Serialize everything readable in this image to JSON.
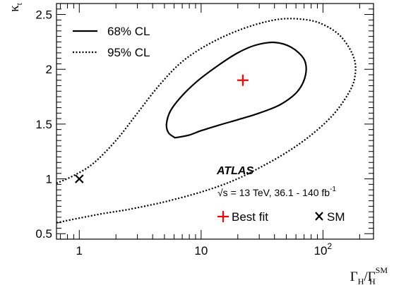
{
  "chart_data": {
    "type": "contour",
    "xlabel": {
      "base": "Γ",
      "sub": "H",
      "sep": "/",
      "base2": "Γ",
      "sub2": "H",
      "sup2": "SM"
    },
    "ylabel": {
      "base": "κ",
      "sub": "t"
    },
    "xscale": "log",
    "xlim": [
      0.65,
      260
    ],
    "ylim": [
      0.45,
      2.6
    ],
    "xticks": [
      {
        "value": 1,
        "label": "1"
      },
      {
        "value": 10,
        "label": "10"
      },
      {
        "value": 100,
        "label": "10",
        "sup": "2"
      }
    ],
    "yticks": [
      {
        "value": 0.5,
        "label": "0.5"
      },
      {
        "value": 1,
        "label": "1"
      },
      {
        "value": 1.5,
        "label": "1.5"
      },
      {
        "value": 2,
        "label": "2"
      },
      {
        "value": 2.5,
        "label": "2.5"
      }
    ],
    "legend": {
      "position": "top-left",
      "entries": [
        {
          "label": "68% CL",
          "style": "solid"
        },
        {
          "label": "95% CL",
          "style": "dotted"
        }
      ]
    },
    "annotations": {
      "experiment": "ATLAS",
      "energy_prefix": "√s",
      "energy_text": " = 13 TeV, 36.1 - 140 fb",
      "energy_sup": "-1"
    },
    "markers": [
      {
        "name": "Best fit",
        "x": 22,
        "y": 1.9,
        "symbol": "plus",
        "color": "#ff0000"
      },
      {
        "name": "SM",
        "x": 1,
        "y": 1,
        "symbol": "cross",
        "color": "#000000"
      }
    ],
    "contours": [
      {
        "label": "68% CL",
        "style": "solid",
        "points": [
          [
            6.1,
            1.375
          ],
          [
            5.4,
            1.42
          ],
          [
            5.2,
            1.5
          ],
          [
            5.6,
            1.62
          ],
          [
            7.0,
            1.76
          ],
          [
            9.5,
            1.9
          ],
          [
            14,
            2.04
          ],
          [
            20,
            2.15
          ],
          [
            28,
            2.22
          ],
          [
            40,
            2.245
          ],
          [
            55,
            2.2
          ],
          [
            70,
            2.09
          ],
          [
            72,
            1.95
          ],
          [
            62,
            1.8
          ],
          [
            45,
            1.68
          ],
          [
            30,
            1.6
          ],
          [
            20,
            1.54
          ],
          [
            14,
            1.49
          ],
          [
            10,
            1.44
          ],
          [
            8,
            1.4
          ],
          [
            6.1,
            1.375
          ]
        ]
      },
      {
        "label": "95% CL",
        "style": "dotted",
        "points": [
          [
            0.65,
            0.96
          ],
          [
            0.9,
            1.03
          ],
          [
            1.3,
            1.14
          ],
          [
            2.0,
            1.35
          ],
          [
            3.0,
            1.6
          ],
          [
            4.5,
            1.85
          ],
          [
            7,
            2.07
          ],
          [
            12,
            2.24
          ],
          [
            22,
            2.37
          ],
          [
            40,
            2.45
          ],
          [
            62,
            2.46
          ],
          [
            95,
            2.42
          ],
          [
            140,
            2.3
          ],
          [
            180,
            2.1
          ],
          [
            182,
            1.92
          ],
          [
            160,
            1.77
          ],
          [
            120,
            1.58
          ],
          [
            80,
            1.4
          ],
          [
            50,
            1.24
          ],
          [
            30,
            1.1
          ],
          [
            18,
            0.98
          ],
          [
            10,
            0.88
          ],
          [
            5,
            0.79
          ],
          [
            2.5,
            0.72
          ],
          [
            1.5,
            0.68
          ],
          [
            0.65,
            0.6
          ]
        ]
      }
    ]
  }
}
